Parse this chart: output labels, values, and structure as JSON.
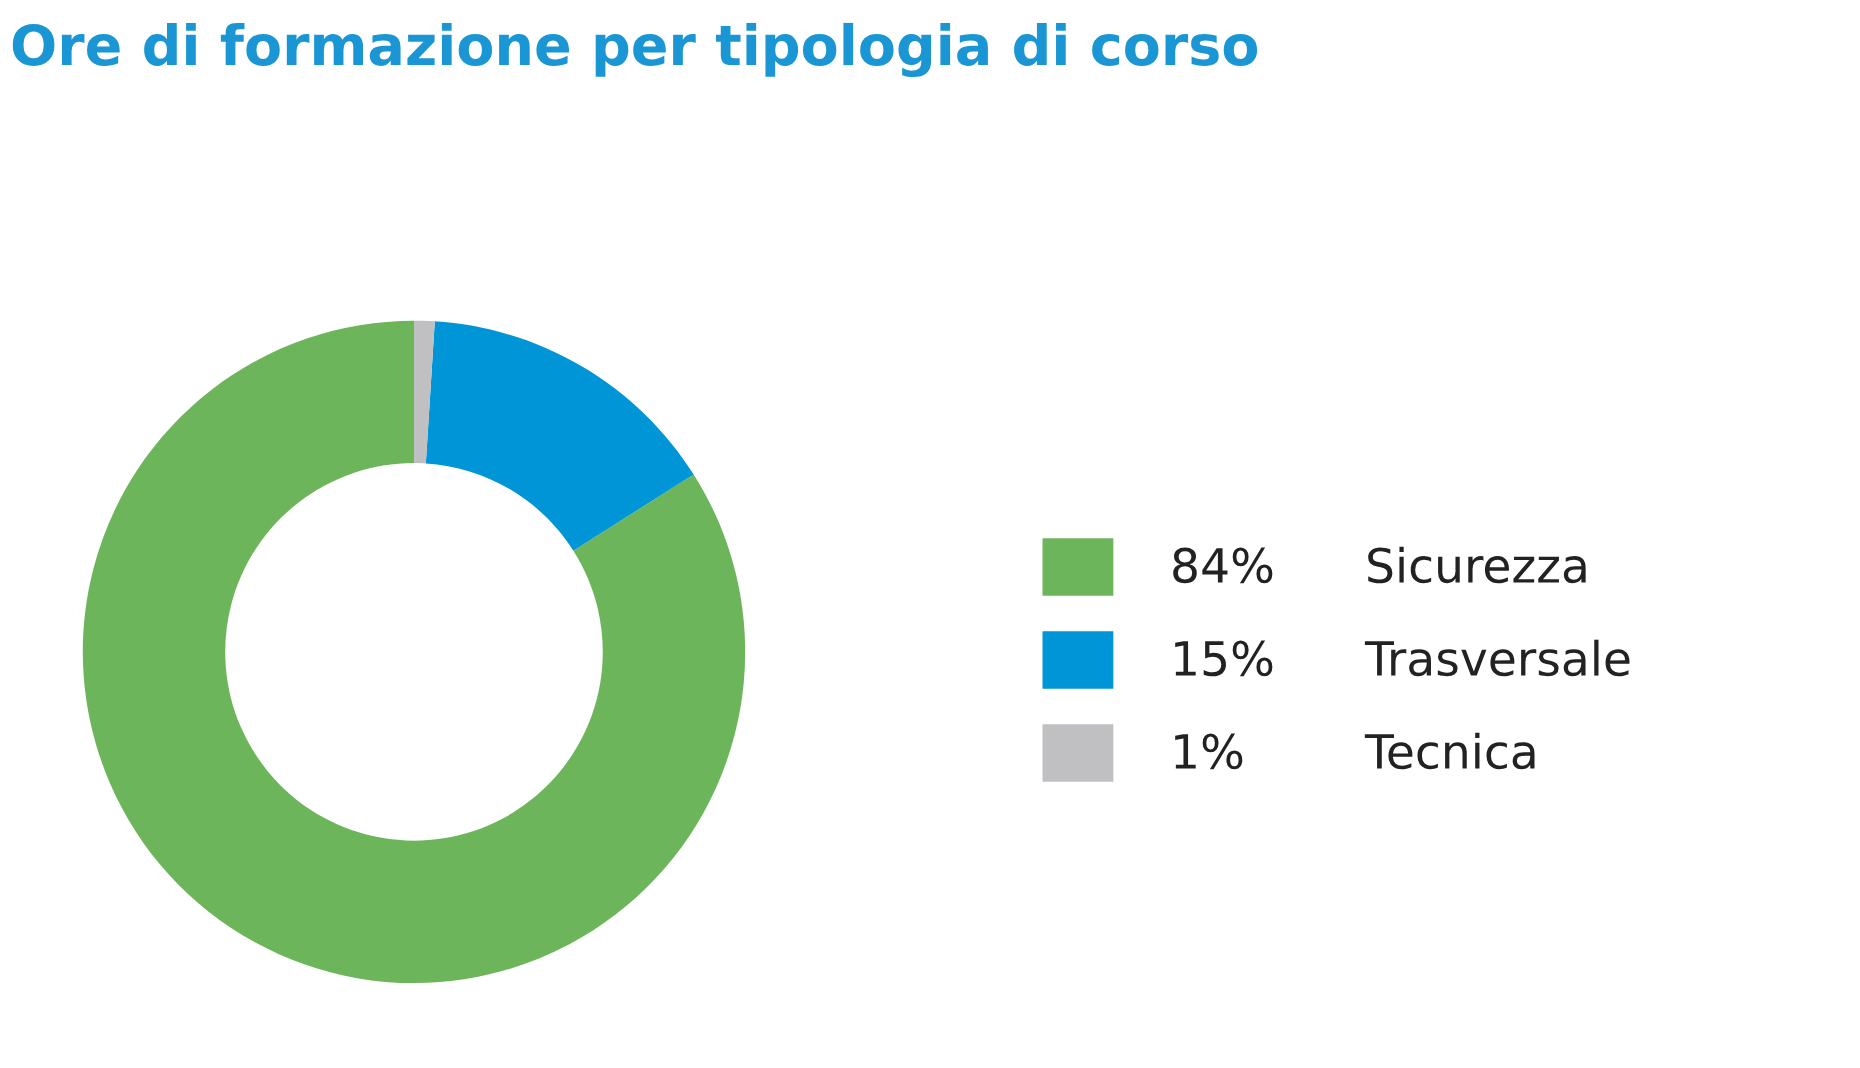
{
  "chart_data": {
    "type": "donut",
    "title": "Ore di formazione per tipologia di corso",
    "categories": [
      "Sicurezza",
      "Trasversale",
      "Tecnica"
    ],
    "values": [
      84,
      15,
      1
    ],
    "value_labels": [
      "84%",
      "15%",
      "1%"
    ],
    "colors": [
      "#6db55a",
      "#0095d6",
      "#c0c0c2"
    ],
    "legend": "right"
  }
}
